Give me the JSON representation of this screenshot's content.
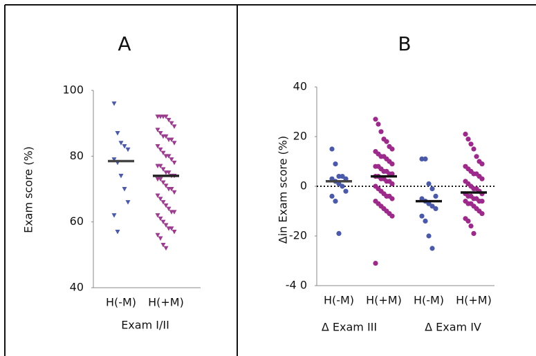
{
  "chart_data": [
    {
      "type": "dot",
      "title": "A",
      "ylabel": "Exam score (%)",
      "xlabel": "Exam I/II",
      "categories": [
        "H(-M)",
        "H(+M)"
      ],
      "ylim": [
        40,
        100
      ],
      "yticks": [
        40,
        60,
        80,
        100
      ],
      "grid": false,
      "groups": [
        {
          "color": "#4a5aa8",
          "marker": "triangle-down",
          "median": 78.5,
          "median_color": "#444444",
          "values": [
            96,
            87,
            84,
            83,
            82,
            79,
            78,
            74,
            70,
            66,
            62,
            57
          ]
        },
        {
          "color": "#9a3d8f",
          "marker": "triangle-down",
          "median": 74,
          "median_color": "#222222",
          "values": [
            92,
            92,
            92,
            92,
            91,
            90,
            89,
            88,
            87,
            86,
            86,
            85,
            85,
            84,
            83,
            82,
            81,
            80,
            80,
            79,
            78,
            77,
            77,
            76,
            75,
            75,
            74,
            74,
            73,
            73,
            72,
            71,
            70,
            70,
            69,
            68,
            67,
            66,
            65,
            64,
            63,
            63,
            62,
            61,
            60,
            59,
            58,
            58,
            57,
            56,
            55,
            53,
            52
          ]
        }
      ]
    },
    {
      "type": "dot",
      "title": "B",
      "ylabel": "Δin Exam score (%)",
      "categories": [
        "H(-M)",
        "H(+M)",
        "H(-M)",
        "H(+M)"
      ],
      "group_labels": [
        "Δ Exam III",
        "Δ Exam IV"
      ],
      "ylim": [
        -40,
        40
      ],
      "yticks": [
        {
          "value": -40,
          "label": "-4 0"
        },
        -20,
        0,
        20,
        40
      ],
      "grid": false,
      "reference_line": 0,
      "groups": [
        {
          "color": "#4a5aa8",
          "marker": "circle",
          "median": 2,
          "median_color": "#444444",
          "values": [
            15,
            9,
            4,
            4,
            3,
            3,
            2,
            1,
            0,
            -2,
            -4,
            -6,
            -19
          ]
        },
        {
          "color": "#9b2a8a",
          "marker": "circle",
          "median": 4,
          "median_color": "#111111",
          "values": [
            27,
            25,
            22,
            19,
            18,
            16,
            15,
            14,
            13,
            12,
            12,
            11,
            10,
            9,
            8,
            8,
            7,
            6,
            6,
            5,
            5,
            4,
            4,
            3,
            3,
            2,
            2,
            1,
            0,
            -1,
            -2,
            -3,
            -4,
            -4,
            -5,
            -6,
            -7,
            -8,
            -9,
            -10,
            -11,
            -12,
            -31
          ]
        },
        {
          "color": "#4a5aa8",
          "marker": "circle",
          "median": -6,
          "median_color": "#111111",
          "values": [
            11,
            11,
            1,
            -1,
            -4,
            -5,
            -6,
            -7,
            -8,
            -9,
            -12,
            -14,
            -20,
            -25
          ]
        },
        {
          "color": "#9b2a8a",
          "marker": "circle",
          "median": -2.5,
          "median_color": "#111111",
          "values": [
            21,
            19,
            17,
            15,
            12,
            10,
            9,
            8,
            7,
            6,
            5,
            5,
            4,
            3,
            2,
            1,
            0,
            -1,
            -1,
            -2,
            -3,
            -3,
            -4,
            -4,
            -5,
            -5,
            -6,
            -6,
            -6,
            -7,
            -7,
            -8,
            -9,
            -10,
            -11,
            -13,
            -14,
            -16,
            -19
          ]
        }
      ]
    }
  ]
}
